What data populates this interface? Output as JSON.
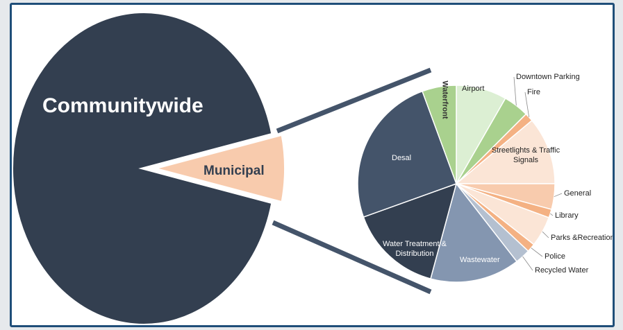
{
  "chart_data": [
    {
      "type": "pie",
      "categories": [
        "Communitywide",
        "Municipal"
      ],
      "values": [
        93,
        7
      ],
      "colors": [
        "#333f50",
        "#f8cbad"
      ]
    },
    {
      "type": "pie",
      "categories": [
        "Airport",
        "Downtown Parking",
        "Fire",
        "Streetlights & Traffic Signals",
        "General",
        "Library",
        "Parks &Recreation",
        "Police",
        "Recycled Water",
        "Wastewater",
        "Water Treatment & Distribution",
        "Desal",
        "Waterfront"
      ],
      "values": [
        8.3,
        4.2,
        1.4,
        11.1,
        4.2,
        1.4,
        5,
        1.4,
        2.5,
        14.7,
        15.3,
        24.9,
        5.6
      ],
      "colors": [
        "#dcefd3",
        "#a9d18e",
        "#f4b183",
        "#fbe5d6",
        "#f8cbad",
        "#f4b183",
        "#fbe5d6",
        "#f4b183",
        "#b4c0d0",
        "#8496b0",
        "#333f50",
        "#44546a",
        "#a9d18e"
      ]
    }
  ]
}
